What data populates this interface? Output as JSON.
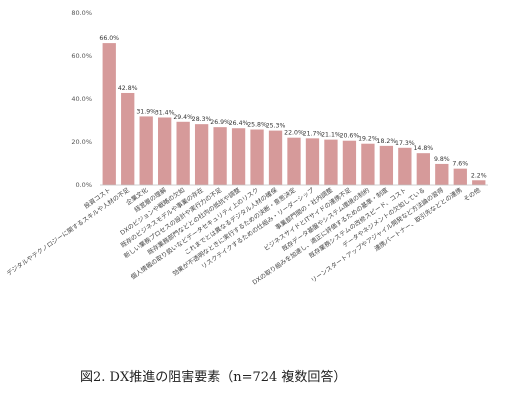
{
  "caption": "図2. DX推進の阻害要素（n=724 複数回答）",
  "chart_data": {
    "type": "bar",
    "title": "",
    "xlabel": "",
    "ylabel": "",
    "ylim": [
      0,
      80
    ],
    "yticks": [
      0,
      20,
      40,
      60,
      80
    ],
    "ytick_labels": [
      "0.0%",
      "20.0%",
      "40.0%",
      "60.0%",
      "80.0%"
    ],
    "grid": false,
    "bar_color": "#d69a9a",
    "categories": [
      "投資コスト",
      "デジタルやテクノロジーに関するスキルや人材の不足",
      "企業文化",
      "経営層の理解",
      "DXのビジョンや戦略の欠如",
      "既存のビジネスモデルや事業の存在",
      "新しい業務プロセスの設計や実行力の不足",
      "既存業務部門などとの社内の抵抗や調整",
      "個人情報の取り扱いなどデータセキュリティ上のリスク",
      "これまでとは異なるデジタル人材の確保",
      "効果が不透明なときに実行するための決断・意思決定",
      "リスクテイクするための仕組み・リーダーシップ",
      "事業部門間の・社内調整",
      "ビジネスサイドとITサイドの連携不足",
      "既存データ基盤やシステム環境の制約",
      "DXの取り組みを加速し、適正に評価するための基準・制度",
      "既存業務システムの改修スピード、コスト",
      "データやネジメントの欠如している",
      "リーンスタートアップやアジャイル開発など方法論の習得",
      "連携パートナー、取引先などとの連携",
      "その他"
    ],
    "values": [
      66.0,
      42.8,
      31.9,
      31.4,
      29.4,
      28.3,
      26.9,
      26.4,
      25.8,
      25.3,
      22.0,
      21.7,
      21.1,
      20.6,
      19.2,
      18.2,
      17.3,
      14.8,
      9.8,
      7.6,
      2.2
    ],
    "data_labels": [
      "66.0%",
      "42.8%",
      "31.9%",
      "31.4%",
      "29.4%",
      "28.3%",
      "26.9%",
      "26.4%",
      "25.8%",
      "25.3%",
      "22.0%",
      "21.7%",
      "21.1%",
      "20.6%",
      "19.2%",
      "18.2%",
      "17.3%",
      "14.8%",
      "9.8%",
      "7.6%",
      "2.2%"
    ]
  }
}
